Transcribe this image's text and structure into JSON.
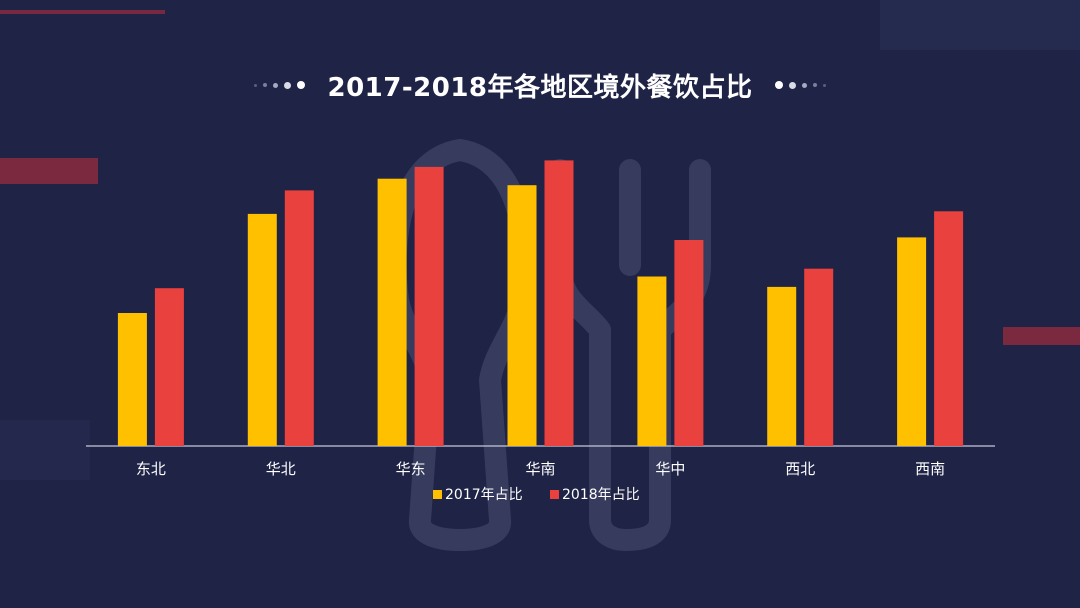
{
  "title": "2017-2018年各地区境外餐饮占比",
  "colors": {
    "background": "#1f2346",
    "series_2017": "#ffc000",
    "series_2018": "#e8413e",
    "axis": "#c5c8d6",
    "text": "#ffffff",
    "accent_bar": "#8c2a3e",
    "watermark": "#3a3f62"
  },
  "watermark_icon": "fork-spoon-icon",
  "chart_data": {
    "type": "bar",
    "title": "2017-2018年各地区境外餐饮占比",
    "categories": [
      "东北",
      "华北",
      "华东",
      "华南",
      "华中",
      "西北",
      "西南"
    ],
    "series": [
      {
        "name": "2017年占比",
        "values": [
          10.2,
          17.8,
          20.5,
          20.0,
          13.0,
          12.2,
          16.0
        ]
      },
      {
        "name": "2018年占比",
        "values": [
          12.1,
          19.6,
          21.4,
          21.9,
          15.8,
          13.6,
          18.0
        ]
      }
    ],
    "ylim": [
      0,
      25
    ],
    "yaxis_visible": false,
    "grid": false,
    "legend_position": "bottom",
    "xlabel": "",
    "ylabel": ""
  }
}
